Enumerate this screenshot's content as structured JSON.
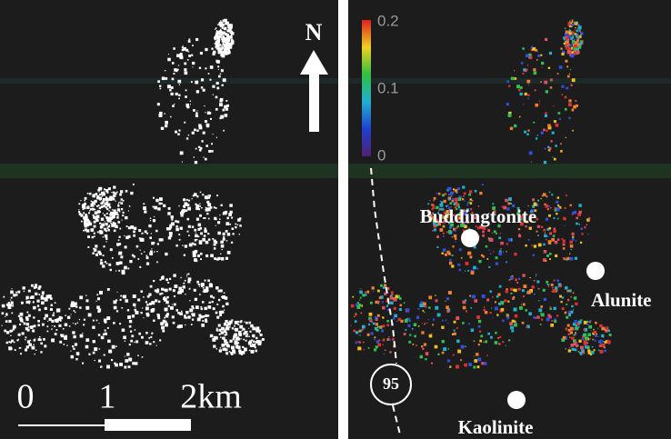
{
  "left_panel": {
    "north_label": "N",
    "scale_bar": {
      "labels": [
        "0",
        "1",
        "2km"
      ]
    }
  },
  "right_panel": {
    "colorbar": {
      "ticks": [
        0.2,
        0.1,
        0
      ]
    },
    "road_label": "95",
    "sites": [
      "Buddingtonite",
      "Alunite",
      "Kaolinite"
    ]
  }
}
